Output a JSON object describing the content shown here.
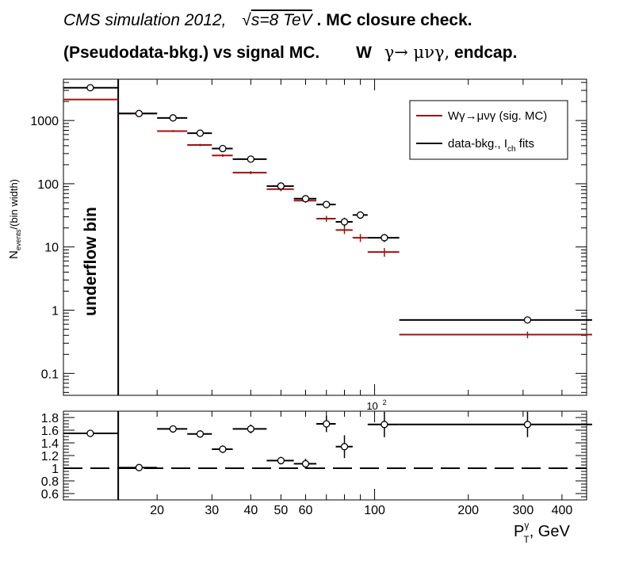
{
  "title": {
    "line1_experiment": "CMS simulation 2012,",
    "line1_sqrt": "√",
    "line1_energy": "s=8 TeV",
    "line1_check": ". MC closure check.",
    "line2_left": "(Pseudodata-bkg.) vs signal MC.",
    "line2_W": "W",
    "line2_decay": "γ→  μνγ,",
    "line2_region": "endcap."
  },
  "colors": {
    "signal_mc": "#a01010",
    "data_bkg": "#000000"
  },
  "chart_data": [
    {
      "type": "scatter",
      "ylabel_main": "N",
      "ylabel_sub": "events",
      "ylabel_rest": "/(bin width)",
      "yscale": "log",
      "xscale": "log",
      "ylim": [
        0.045,
        4500
      ],
      "xlim": [
        10,
        480
      ],
      "yticks": [
        {
          "value": 0.1,
          "label": "0.1"
        },
        {
          "value": 1,
          "label": "1"
        },
        {
          "value": 10,
          "label": "10"
        },
        {
          "value": 100,
          "label": "100"
        },
        {
          "value": 1000,
          "label": "1000"
        }
      ],
      "x_exponent_label": "10",
      "x_exponent_sup": "2",
      "underflow_label": "underflow bin",
      "underflow_edge": 15,
      "legend": {
        "position": "top-right",
        "entries": [
          {
            "series": "signal_mc",
            "label": "Wγ→μνγ (sig. MC)"
          },
          {
            "series": "data_bkg",
            "label_main": "data-bkg., I",
            "label_sub": "ch",
            "label_rest": " fits"
          }
        ]
      },
      "series": [
        {
          "key": "signal_mc",
          "bins": [
            {
              "lo": 10,
              "hi": 15,
              "x": 12.2,
              "y": 2150,
              "err": 0
            },
            {
              "lo": 15,
              "hi": 20,
              "x": 17.5,
              "y": 1290,
              "err": 40
            },
            {
              "lo": 20,
              "hi": 25,
              "x": 22.5,
              "y": 680,
              "err": 25
            },
            {
              "lo": 25,
              "hi": 30,
              "x": 27.5,
              "y": 410,
              "err": 18
            },
            {
              "lo": 30,
              "hi": 35,
              "x": 32.5,
              "y": 280,
              "err": 14
            },
            {
              "lo": 35,
              "hi": 45,
              "x": 40,
              "y": 150,
              "err": 8
            },
            {
              "lo": 45,
              "hi": 55,
              "x": 50,
              "y": 82,
              "err": 6
            },
            {
              "lo": 55,
              "hi": 65,
              "x": 60,
              "y": 54,
              "err": 4
            },
            {
              "lo": 65,
              "hi": 75,
              "x": 70,
              "y": 28,
              "err": 3
            },
            {
              "lo": 75,
              "hi": 85,
              "x": 80,
              "y": 18.5,
              "err": 2.5
            },
            {
              "lo": 85,
              "hi": 95,
              "x": 90,
              "y": 14,
              "err": 2
            },
            {
              "lo": 95,
              "hi": 120,
              "x": 107.5,
              "y": 8.3,
              "err": 1.3
            },
            {
              "lo": 120,
              "hi": 500,
              "x": 310,
              "y": 0.41,
              "err": 0.05
            }
          ]
        },
        {
          "key": "data_bkg",
          "bins": [
            {
              "lo": 10,
              "hi": 15,
              "x": 12.2,
              "y": 3300,
              "err": 0
            },
            {
              "lo": 15,
              "hi": 20,
              "x": 17.5,
              "y": 1290,
              "err": 60
            },
            {
              "lo": 20,
              "hi": 25,
              "x": 22.5,
              "y": 1100,
              "err": 55
            },
            {
              "lo": 25,
              "hi": 30,
              "x": 27.5,
              "y": 630,
              "err": 40
            },
            {
              "lo": 30,
              "hi": 35,
              "x": 32.5,
              "y": 360,
              "err": 25
            },
            {
              "lo": 35,
              "hi": 45,
              "x": 40,
              "y": 245,
              "err": 18
            },
            {
              "lo": 45,
              "hi": 55,
              "x": 50,
              "y": 92,
              "err": 10
            },
            {
              "lo": 55,
              "hi": 65,
              "x": 60,
              "y": 58,
              "err": 7
            },
            {
              "lo": 65,
              "hi": 75,
              "x": 70,
              "y": 47,
              "err": 6
            },
            {
              "lo": 75,
              "hi": 85,
              "x": 80,
              "y": 25,
              "err": 4
            },
            {
              "lo": 85,
              "hi": 95,
              "x": 90,
              "y": 32,
              "err": 4
            },
            {
              "lo": 95,
              "hi": 120,
              "x": 107.5,
              "y": 14,
              "err": 2
            },
            {
              "lo": 120,
              "hi": 500,
              "x": 310,
              "y": 0.7,
              "err": 0.08
            }
          ]
        }
      ]
    },
    {
      "type": "scatter",
      "xscale": "log",
      "xlim": [
        10,
        480
      ],
      "ylim": [
        0.5,
        1.9
      ],
      "yticks": [
        {
          "value": 0.6,
          "label": "0.6"
        },
        {
          "value": 0.8,
          "label": "0.8"
        },
        {
          "value": 1,
          "label": "1"
        },
        {
          "value": 1.2,
          "label": "1.2"
        },
        {
          "value": 1.4,
          "label": "1.4"
        },
        {
          "value": 1.6,
          "label": "1.6"
        },
        {
          "value": 1.8,
          "label": "1.8"
        }
      ],
      "xticks": [
        {
          "value": 20,
          "label": "20"
        },
        {
          "value": 30,
          "label": "30"
        },
        {
          "value": 40,
          "label": "40"
        },
        {
          "value": 50,
          "label": "50"
        },
        {
          "value": 60,
          "label": "60"
        },
        {
          "value": 100,
          "label": "100"
        },
        {
          "value": 200,
          "label": "200"
        },
        {
          "value": 300,
          "label": "300"
        },
        {
          "value": 400,
          "label": "400"
        }
      ],
      "xlabel_main": "P",
      "xlabel_sup": "γ",
      "xlabel_sub": "T",
      "xlabel_rest": ", GeV",
      "reference_line": 1,
      "underflow_edge": 15,
      "points": [
        {
          "lo": 10,
          "hi": 15,
          "x": 12.2,
          "y": 1.55,
          "err": 0
        },
        {
          "lo": 15,
          "hi": 20,
          "x": 17.5,
          "y": 1.01,
          "err": 0.02
        },
        {
          "lo": 20,
          "hi": 25,
          "x": 22.5,
          "y": 1.62,
          "err": 0.04
        },
        {
          "lo": 25,
          "hi": 30,
          "x": 27.5,
          "y": 1.54,
          "err": 0.05
        },
        {
          "lo": 30,
          "hi": 35,
          "x": 32.5,
          "y": 1.3,
          "err": 0.06
        },
        {
          "lo": 35,
          "hi": 45,
          "x": 40,
          "y": 1.62,
          "err": 0.07
        },
        {
          "lo": 45,
          "hi": 55,
          "x": 50,
          "y": 1.12,
          "err": 0.06
        },
        {
          "lo": 55,
          "hi": 65,
          "x": 60,
          "y": 1.07,
          "err": 0.08
        },
        {
          "lo": 65,
          "hi": 75,
          "x": 70,
          "y": 1.7,
          "err": 0.13
        },
        {
          "lo": 75,
          "hi": 85,
          "x": 80,
          "y": 1.34,
          "err": 0.18
        },
        {
          "lo": 95,
          "hi": 120,
          "x": 107.5,
          "y": 1.69,
          "err": 0.2
        },
        {
          "lo": 120,
          "hi": 500,
          "x": 310,
          "y": 1.69,
          "err": 0.2
        }
      ]
    }
  ]
}
